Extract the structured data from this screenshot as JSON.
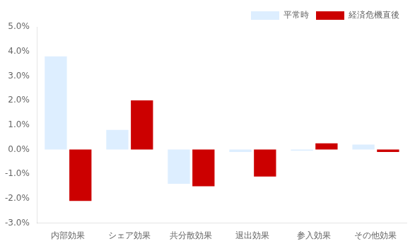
{
  "chart_data": {
    "type": "bar",
    "categories": [
      "内部効果",
      "シェア効果",
      "共分散効果",
      "退出効果",
      "参入効果",
      "その他効果"
    ],
    "series": [
      {
        "name": "平常時",
        "color": "#ddeeff",
        "values": [
          0.038,
          0.008,
          -0.014,
          -0.001,
          -0.0005,
          0.002
        ]
      },
      {
        "name": "経済危機直後",
        "color": "#cc0000",
        "values": [
          -0.021,
          0.02,
          -0.015,
          -0.011,
          0.0025,
          -0.001
        ]
      }
    ],
    "ylim": [
      -0.03,
      0.05
    ],
    "yticks": [
      {
        "value": -0.03,
        "label": "-3.0%"
      },
      {
        "value": -0.02,
        "label": "-2.0%"
      },
      {
        "value": -0.01,
        "label": "-1.0%"
      },
      {
        "value": 0.0,
        "label": "0.0%"
      },
      {
        "value": 0.01,
        "label": "1.0%"
      },
      {
        "value": 0.02,
        "label": "2.0%"
      },
      {
        "value": 0.03,
        "label": "3.0%"
      },
      {
        "value": 0.04,
        "label": "4.0%"
      },
      {
        "value": 0.05,
        "label": "5.0%"
      }
    ],
    "grid": false,
    "legend": "upper right"
  }
}
